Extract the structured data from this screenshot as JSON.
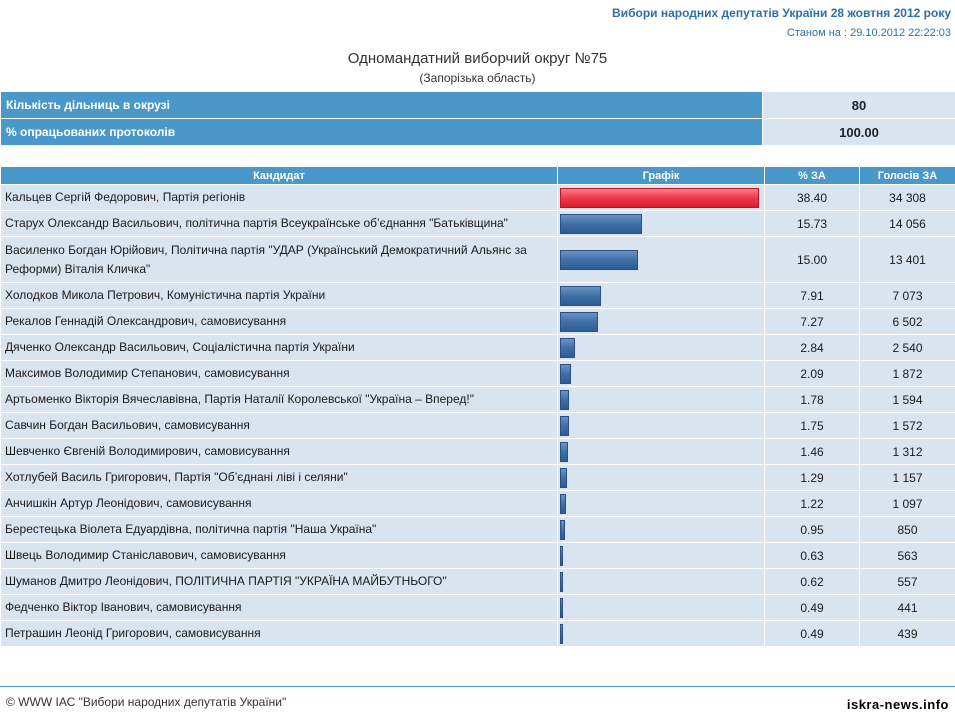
{
  "header": {
    "title": "Вибори народних депутатів України 28 жовтня 2012 року",
    "status": "Станом на : 29.10.2012 22:22:03"
  },
  "district": {
    "title": "Одномандатний виборчий округ №75",
    "region": "(Запорізька область)"
  },
  "summary": [
    {
      "label": "Кількість дільниць в окрузі",
      "value": "80"
    },
    {
      "label": "% опрацьованих протоколів",
      "value": "100.00"
    }
  ],
  "table": {
    "headers": {
      "candidate": "Кандидат",
      "graph": "Графік",
      "percent": "% ЗА",
      "votes": "Голосів ЗА"
    },
    "colors": {
      "winner_bar": "#ee3a4c",
      "other_bar": "#3f6fa8"
    },
    "rows": [
      {
        "name": "Кальцев Сергій Федорович",
        "party": ", Партія регіонів",
        "percent": "38.40",
        "votes": "34 308",
        "share": 38.4
      },
      {
        "name": "Старух Олександр Васильович",
        "party": ", політична партія Всеукраїнське об’єднання \"Батьківщина\"",
        "percent": "15.73",
        "votes": "14 056",
        "share": 15.73
      },
      {
        "name": "Василенко Богдан Юрійович",
        "party": ", Політична партія \"УДАР (Український Демократичний Альянс за Реформи) Віталія Кличка\"",
        "percent": "15.00",
        "votes": "13 401",
        "share": 15.0
      },
      {
        "name": "Холодков Микола Петрович",
        "party": ", Комуністична партія України",
        "percent": "7.91",
        "votes": "7 073",
        "share": 7.91
      },
      {
        "name": "Рекалов Геннадій Олександрович",
        "party": ", самовисування",
        "percent": "7.27",
        "votes": "6 502",
        "share": 7.27
      },
      {
        "name": "Дяченко Олександр Васильович",
        "party": ", Соціалістична партія України",
        "percent": "2.84",
        "votes": "2 540",
        "share": 2.84
      },
      {
        "name": "Максимов Володимир Степанович",
        "party": ", самовисування",
        "percent": "2.09",
        "votes": "1 872",
        "share": 2.09
      },
      {
        "name": "Артьоменко Вікторія Вячеславівна",
        "party": ", Партія Наталії Королевської \"Україна – Вперед!\"",
        "percent": "1.78",
        "votes": "1 594",
        "share": 1.78
      },
      {
        "name": "Савчин Богдан Васильович",
        "party": ", самовисування",
        "percent": "1.75",
        "votes": "1 572",
        "share": 1.75
      },
      {
        "name": "Шевченко Євгеній Володимирович",
        "party": ", самовисування",
        "percent": "1.46",
        "votes": "1 312",
        "share": 1.46
      },
      {
        "name": "Хотлубей Василь Григорович",
        "party": ", Партія \"Об’єднані ліві і селяни\"",
        "percent": "1.29",
        "votes": "1 157",
        "share": 1.29
      },
      {
        "name": "Анчишкін Артур Леонідович",
        "party": ", самовисування",
        "percent": "1.22",
        "votes": "1 097",
        "share": 1.22
      },
      {
        "name": "Берестецька Віолета Едуардівна",
        "party": ", політична партія \"Наша Україна\"",
        "percent": "0.95",
        "votes": "850",
        "share": 0.95
      },
      {
        "name": "Швець Володимир Станіславович",
        "party": ", самовисування",
        "percent": "0.63",
        "votes": "563",
        "share": 0.63
      },
      {
        "name": "Шуманов Дмитро Леонідович",
        "party": ", ПОЛІТИЧНА ПАРТІЯ \"УКРАЇНА МАЙБУТНЬОГО\"",
        "percent": "0.62",
        "votes": "557",
        "share": 0.62
      },
      {
        "name": "Федченко Віктор Іванович",
        "party": ", самовисування",
        "percent": "0.49",
        "votes": "441",
        "share": 0.49
      },
      {
        "name": "Петрашин Леонід Григорович",
        "party": ", самовисування",
        "percent": "0.49",
        "votes": "439",
        "share": 0.49
      }
    ]
  },
  "footer": {
    "copyright": "© WWW ІАС \"Вибори народних депутатів України\"",
    "watermark": "iskra-news.info"
  }
}
